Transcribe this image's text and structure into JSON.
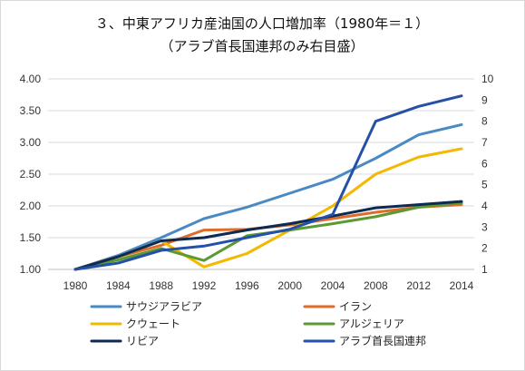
{
  "chart_data": {
    "type": "line",
    "title": "３、中東アフリカ産油国の人口増加率（1980年＝１）",
    "subtitle": "（アラブ首長国連邦のみ右目盛）",
    "xlabel": "",
    "ylabel": "",
    "x": [
      "1980",
      "1984",
      "1988",
      "1992",
      "1996",
      "2000",
      "2004",
      "2008",
      "2012",
      "2014"
    ],
    "ylim": [
      1.0,
      4.0
    ],
    "yticks": [
      "1.00",
      "1.50",
      "2.00",
      "2.50",
      "3.00",
      "3.50",
      "4.00"
    ],
    "y2lim": [
      1,
      10
    ],
    "y2ticks": [
      "1",
      "2",
      "3",
      "4",
      "5",
      "6",
      "7",
      "8",
      "9",
      "10"
    ],
    "grid": true,
    "legend_position": "bottom",
    "series": [
      {
        "name": "サウジアラビア",
        "color": "#4a8ac4",
        "axis": "left",
        "values": [
          1.0,
          1.22,
          1.5,
          1.8,
          1.98,
          2.2,
          2.42,
          2.75,
          3.12,
          3.28
        ]
      },
      {
        "name": "イラン",
        "color": "#e06c2a",
        "axis": "left",
        "values": [
          1.0,
          1.2,
          1.38,
          1.62,
          1.63,
          1.7,
          1.8,
          1.9,
          1.98,
          2.02
        ]
      },
      {
        "name": "クウェート",
        "color": "#f4b800",
        "axis": "left",
        "values": [
          1.0,
          1.2,
          1.45,
          1.04,
          1.25,
          1.62,
          2.0,
          2.5,
          2.77,
          2.9
        ]
      },
      {
        "name": "アルジェリア",
        "color": "#5b9a32",
        "axis": "left",
        "values": [
          1.0,
          1.15,
          1.33,
          1.14,
          1.53,
          1.62,
          1.72,
          1.83,
          1.98,
          2.05
        ]
      },
      {
        "name": "リビア",
        "color": "#0d2a52",
        "axis": "left",
        "values": [
          1.0,
          1.2,
          1.45,
          1.5,
          1.62,
          1.72,
          1.84,
          1.97,
          2.02,
          2.07
        ]
      },
      {
        "name": "アラブ首長国連邦",
        "color": "#2550a8",
        "axis": "right",
        "values": [
          1.0,
          1.3,
          1.9,
          2.1,
          2.5,
          2.9,
          3.6,
          8.0,
          8.7,
          9.2
        ]
      }
    ]
  }
}
